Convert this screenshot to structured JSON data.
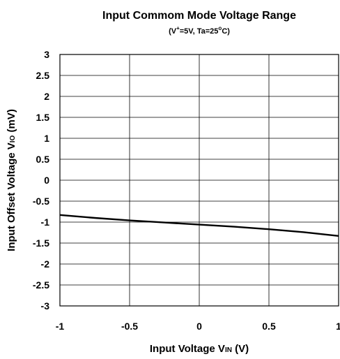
{
  "chart_data": {
    "type": "line",
    "title": "Input Commom Mode Voltage Range",
    "subtitle": {
      "prefix": "(V",
      "sup": "+",
      "mid": "=5V, Ta=25",
      "deg": "o",
      "suffix": "C)"
    },
    "xlabel": {
      "main": "Input Voltage V",
      "sub": "IN",
      "unit": " (V)"
    },
    "ylabel": {
      "main": "Input Offset Voltage V",
      "sub": "IO",
      "unit": " (mV)"
    },
    "xlim": [
      -1,
      1
    ],
    "ylim": [
      -3,
      3
    ],
    "x_ticks": [
      "-1",
      "-0.5",
      "0",
      "0.5",
      "1"
    ],
    "y_ticks": [
      "3",
      "2.5",
      "2",
      "1.5",
      "1",
      "0.5",
      "0",
      "-0.5",
      "-1",
      "-1.5",
      "-2",
      "-2.5",
      "-3"
    ],
    "grid": true,
    "line_color": "#000000",
    "series": [
      {
        "x": [
          -1,
          -0.75,
          -0.5,
          -0.25,
          0,
          0.25,
          0.5,
          0.75,
          1
        ],
        "y": [
          -0.83,
          -0.9,
          -0.96,
          -1.01,
          -1.06,
          -1.11,
          -1.17,
          -1.24,
          -1.33
        ]
      }
    ]
  }
}
